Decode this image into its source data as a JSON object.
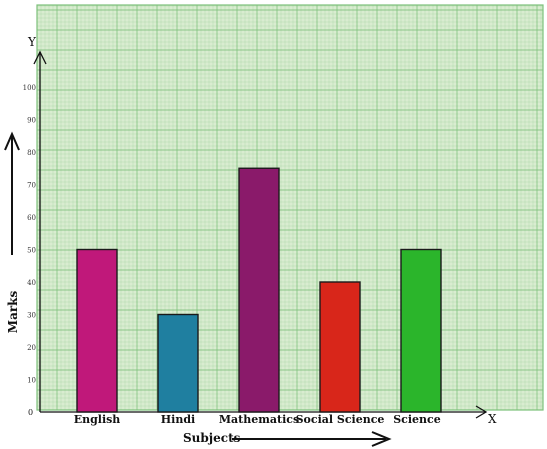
{
  "chart_data": {
    "type": "bar",
    "categories": [
      "English",
      "Hindi",
      "Mathematics",
      "Social Science",
      "Science"
    ],
    "values": [
      50,
      30,
      75,
      40,
      50
    ],
    "bar_colors": [
      "#c0187a",
      "#1f7fa0",
      "#8a1a6a",
      "#d8261a",
      "#2bb52b"
    ],
    "title": "",
    "xlabel": "Subjects",
    "ylabel": "Marks",
    "x_axis_letter": "X",
    "y_axis_letter": "Y",
    "origin_label": "0",
    "ylim": [
      0,
      100
    ],
    "yticks": [
      "10",
      "20",
      "30",
      "40",
      "50",
      "60",
      "70",
      "80",
      "90",
      "100"
    ],
    "grid": true,
    "legend": "none",
    "paper_color": "#d9ecd0",
    "grid_color": "#7cc07a"
  }
}
